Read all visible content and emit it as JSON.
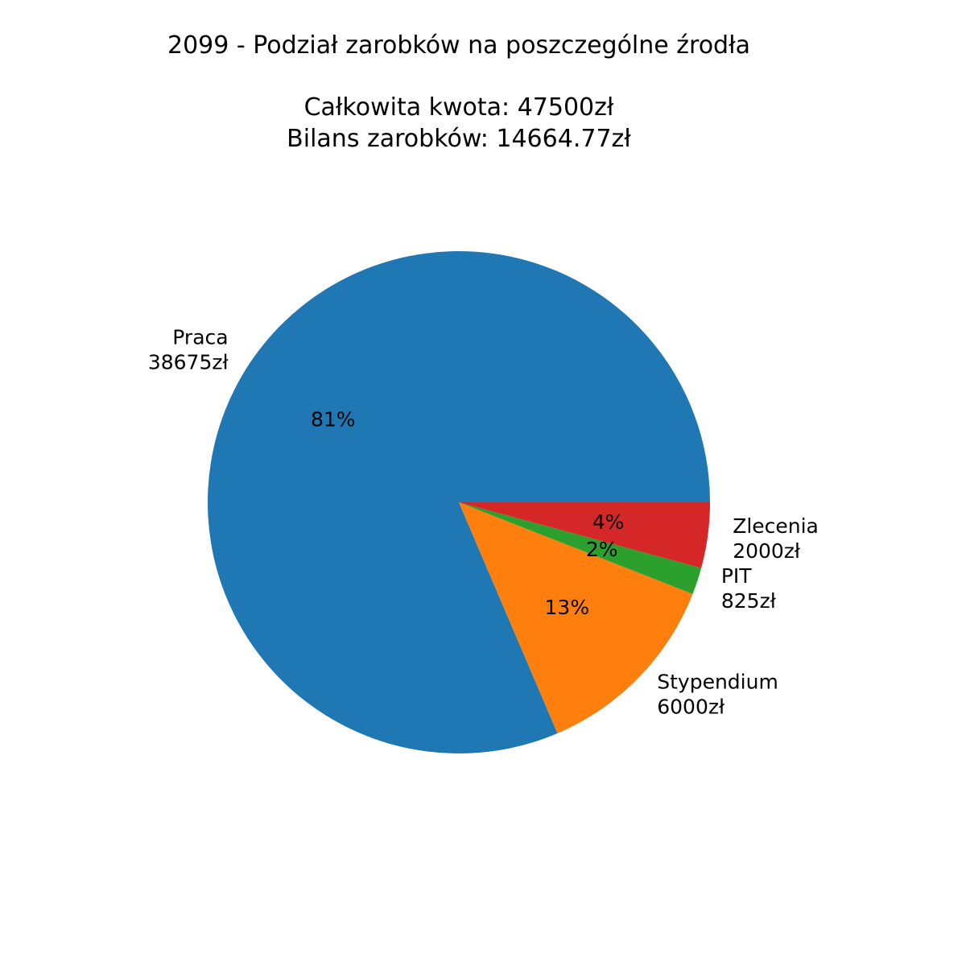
{
  "chart_data": {
    "type": "pie",
    "title_lines": [
      "2099 - Podział zarobków na poszczególne źrodła",
      "",
      "Całkowita kwota: 47500zł",
      "Bilans zarobków: 14664.77zł"
    ],
    "slices": [
      {
        "label": "Praca",
        "value": 38675,
        "value_text": "38675zł",
        "percent_text": "81%",
        "color": "#1f77b4"
      },
      {
        "label": "Stypendium",
        "value": 6000,
        "value_text": "6000zł",
        "percent_text": "13%",
        "color": "#ff7f0e"
      },
      {
        "label": "PIT",
        "value": 825,
        "value_text": "825zł",
        "percent_text": "2%",
        "color": "#2ca02c"
      },
      {
        "label": "Zlecenia",
        "value": 2000,
        "value_text": "2000zł",
        "percent_text": "4%",
        "color": "#d62728"
      }
    ],
    "start_angle_deg": 0,
    "direction": "counterclockwise",
    "legend": "none"
  }
}
